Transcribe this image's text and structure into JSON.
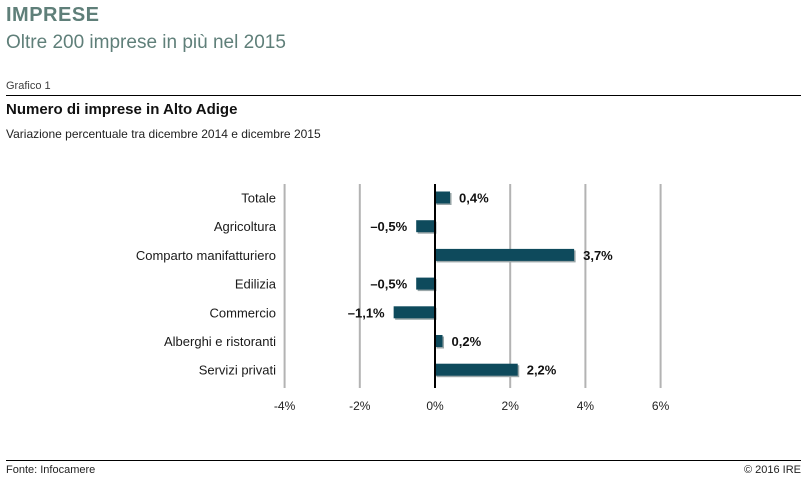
{
  "header": {
    "section_title": "IMPRESE",
    "section_subtitle": "Oltre 200 imprese in più nel 2015"
  },
  "figure": {
    "label": "Grafico 1",
    "source": "Fonte: Infocamere",
    "copyright": "© 2016 IRE"
  },
  "colors": {
    "bar": "#0e4a5c",
    "bar_shadow": "#9aa6a8",
    "grid": "#b3b3b3",
    "zero_line": "#000000",
    "header_text": "#5f7f79"
  },
  "chart_data": {
    "type": "bar",
    "orientation": "horizontal",
    "title": "Numero di imprese in Alto Adige",
    "subtitle": "Variazione percentuale tra dicembre 2014 e dicembre 2015",
    "categories": [
      "Totale",
      "Agricoltura",
      "Comparto manifatturiero",
      "Edilizia",
      "Commercio",
      "Alberghi e ristoranti",
      "Servizi privati"
    ],
    "values": [
      0.4,
      -0.5,
      3.7,
      -0.5,
      -1.1,
      0.2,
      2.2
    ],
    "value_labels": [
      "0,4%",
      "–0,5%",
      "3,7%",
      "–0,5%",
      "–1,1%",
      "0,2%",
      "2,2%"
    ],
    "x_ticks": [
      -4,
      -2,
      0,
      2,
      4,
      6
    ],
    "x_tick_labels": [
      "-4%",
      "-2%",
      "0%",
      "2%",
      "4%",
      "6%"
    ],
    "xlim": [
      -4,
      6
    ],
    "grid": true,
    "xlabel": "",
    "ylabel": ""
  }
}
